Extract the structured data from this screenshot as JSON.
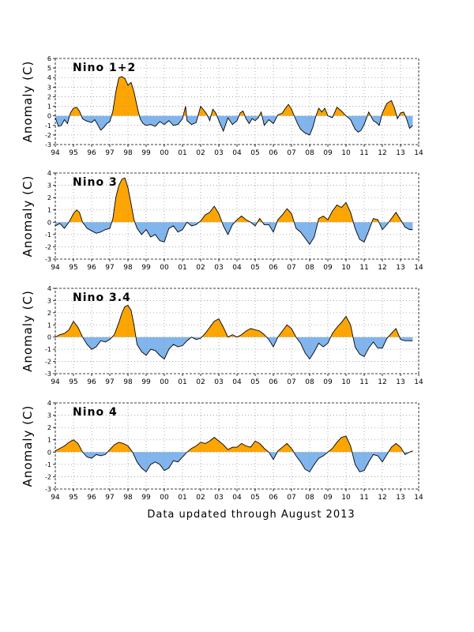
{
  "figure": {
    "footer": "Data updated through August 2013",
    "colors": {
      "positive": "#ffa500",
      "negative": "#80b5ee",
      "line": "#000000",
      "grid": "#999999"
    }
  },
  "chart_data": [
    {
      "type": "area",
      "title": "Nino 1+2",
      "ylabel": "Anomaly (C)",
      "xlabel": "",
      "xlim": [
        1994,
        2014
      ],
      "ylim": [
        -3,
        6
      ],
      "yticks": [
        -3,
        -2,
        -1,
        0,
        1,
        2,
        3,
        4,
        5,
        6
      ],
      "xtick_labels": [
        "94",
        "95",
        "96",
        "97",
        "98",
        "99",
        "00",
        "01",
        "02",
        "03",
        "04",
        "05",
        "06",
        "07",
        "08",
        "09",
        "10",
        "11",
        "12",
        "13",
        "14"
      ],
      "grid": true,
      "fill": "positive orange, negative blue, about zero",
      "series": [
        {
          "x": [
            1994.0,
            1994.17,
            1994.33,
            1994.5,
            1994.67,
            1994.83,
            1995.0,
            1995.17,
            1995.33,
            1995.5,
            1995.67,
            1995.83,
            1996.0,
            1996.17,
            1996.33,
            1996.5,
            1996.67,
            1996.83,
            1997.0,
            1997.17,
            1997.33,
            1997.5,
            1997.67,
            1997.83,
            1998.0,
            1998.17,
            1998.33,
            1998.5,
            1998.67,
            1998.83,
            1999.0,
            1999.25,
            1999.5,
            1999.75,
            2000.0,
            2000.25,
            2000.5,
            2000.75,
            2001.0,
            2001.17,
            2001.25,
            2001.5,
            2001.75,
            2002.0,
            2002.17,
            2002.33,
            2002.5,
            2002.67,
            2002.83,
            2003.0,
            2003.25,
            2003.5,
            2003.75,
            2004.0,
            2004.17,
            2004.33,
            2004.5,
            2004.67,
            2004.83,
            2005.0,
            2005.17,
            2005.33,
            2005.5,
            2005.75,
            2006.0,
            2006.25,
            2006.5,
            2006.67,
            2006.83,
            2007.0,
            2007.17,
            2007.33,
            2007.5,
            2007.75,
            2008.0,
            2008.17,
            2008.33,
            2008.5,
            2008.67,
            2008.83,
            2009.0,
            2009.25,
            2009.5,
            2009.75,
            2010.0,
            2010.25,
            2010.5,
            2010.67,
            2010.83,
            2011.0,
            2011.25,
            2011.5,
            2011.67,
            2011.83,
            2012.0,
            2012.25,
            2012.5,
            2012.67,
            2012.83,
            2013.0,
            2013.17,
            2013.33,
            2013.5,
            2013.67
          ],
          "y": [
            -0.2,
            -1.1,
            -1.0,
            -0.4,
            -0.8,
            0.3,
            0.8,
            0.9,
            0.5,
            -0.3,
            -0.5,
            -0.6,
            -0.7,
            -0.4,
            -0.9,
            -1.5,
            -1.2,
            -0.8,
            -0.6,
            0.5,
            2.5,
            4.0,
            4.1,
            3.9,
            3.2,
            3.5,
            2.5,
            1.0,
            -0.3,
            -0.8,
            -1.0,
            -0.9,
            -1.1,
            -0.6,
            -0.9,
            -0.5,
            -1.0,
            -0.9,
            -0.3,
            1.0,
            -0.5,
            -0.9,
            -0.7,
            1.0,
            0.6,
            0.2,
            -0.5,
            0.7,
            0.3,
            -0.5,
            -1.6,
            -0.2,
            -0.9,
            -0.5,
            0.3,
            0.5,
            -0.3,
            -0.8,
            -0.3,
            -0.5,
            -0.2,
            0.4,
            -1.0,
            -0.4,
            -0.8,
            0.1,
            0.3,
            0.8,
            1.2,
            0.7,
            -0.1,
            -0.8,
            -1.4,
            -1.8,
            -2.0,
            -1.2,
            -0.1,
            0.8,
            0.4,
            0.8,
            0.0,
            -0.2,
            0.9,
            0.5,
            0.0,
            -0.4,
            -1.4,
            -1.7,
            -1.5,
            -0.9,
            0.4,
            -0.5,
            -0.7,
            -1.0,
            0.3,
            1.3,
            1.6,
            0.8,
            -0.3,
            0.3,
            0.4,
            -0.3,
            -1.3,
            -1.0
          ]
        }
      ]
    },
    {
      "type": "area",
      "title": "Nino 3",
      "ylabel": "Anomaly (C)",
      "xlabel": "",
      "xlim": [
        1994,
        2014
      ],
      "ylim": [
        -3,
        4
      ],
      "yticks": [
        -3,
        -2,
        -1,
        0,
        1,
        2,
        3,
        4
      ],
      "xtick_labels": [
        "94",
        "95",
        "96",
        "97",
        "98",
        "99",
        "00",
        "01",
        "02",
        "03",
        "04",
        "05",
        "06",
        "07",
        "08",
        "09",
        "10",
        "11",
        "12",
        "13",
        "14"
      ],
      "grid": true,
      "fill": "positive orange, negative blue, about zero",
      "series": [
        {
          "x": [
            1994.0,
            1994.25,
            1994.5,
            1994.75,
            1995.0,
            1995.17,
            1995.33,
            1995.5,
            1995.75,
            1996.0,
            1996.25,
            1996.5,
            1996.75,
            1997.0,
            1997.17,
            1997.33,
            1997.5,
            1997.67,
            1997.83,
            1998.0,
            1998.17,
            1998.33,
            1998.5,
            1998.75,
            1999.0,
            1999.25,
            1999.5,
            1999.75,
            2000.0,
            2000.25,
            2000.5,
            2000.75,
            2001.0,
            2001.25,
            2001.5,
            2001.75,
            2002.0,
            2002.25,
            2002.5,
            2002.75,
            2003.0,
            2003.25,
            2003.5,
            2003.75,
            2004.0,
            2004.25,
            2004.5,
            2004.75,
            2005.0,
            2005.25,
            2005.5,
            2005.75,
            2006.0,
            2006.25,
            2006.5,
            2006.75,
            2007.0,
            2007.25,
            2007.5,
            2007.75,
            2008.0,
            2008.25,
            2008.5,
            2008.75,
            2009.0,
            2009.25,
            2009.5,
            2009.75,
            2010.0,
            2010.25,
            2010.5,
            2010.75,
            2011.0,
            2011.25,
            2011.5,
            2011.75,
            2012.0,
            2012.25,
            2012.5,
            2012.75,
            2013.0,
            2013.25,
            2013.5,
            2013.67
          ],
          "y": [
            -0.3,
            -0.1,
            -0.5,
            0.0,
            0.7,
            1.0,
            0.8,
            0.0,
            -0.5,
            -0.7,
            -0.9,
            -0.8,
            -0.6,
            -0.5,
            0.3,
            2.0,
            3.0,
            3.5,
            3.6,
            2.8,
            1.5,
            0.2,
            -0.5,
            -1.0,
            -0.6,
            -1.2,
            -1.0,
            -1.5,
            -1.6,
            -0.5,
            -0.3,
            -0.8,
            -0.6,
            0.0,
            -0.3,
            -0.2,
            0.1,
            0.6,
            0.8,
            1.3,
            0.7,
            -0.3,
            -1.0,
            -0.2,
            0.2,
            0.5,
            0.2,
            0.0,
            -0.3,
            0.3,
            -0.2,
            -0.2,
            -0.8,
            0.2,
            0.6,
            1.1,
            0.7,
            -0.5,
            -0.8,
            -1.3,
            -1.8,
            -1.2,
            0.3,
            0.5,
            0.2,
            0.9,
            1.4,
            1.2,
            1.6,
            0.8,
            -0.5,
            -1.4,
            -1.6,
            -0.7,
            0.3,
            0.2,
            -0.6,
            -0.2,
            0.3,
            0.8,
            0.2,
            -0.4,
            -0.6,
            -0.6
          ]
        }
      ]
    },
    {
      "type": "area",
      "title": "Nino 3.4",
      "ylabel": "Anomaly (C)",
      "xlabel": "",
      "xlim": [
        1994,
        2014
      ],
      "ylim": [
        -3,
        4
      ],
      "yticks": [
        -3,
        -2,
        -1,
        0,
        1,
        2,
        3,
        4
      ],
      "xtick_labels": [
        "94",
        "95",
        "96",
        "97",
        "98",
        "99",
        "00",
        "01",
        "02",
        "03",
        "04",
        "05",
        "06",
        "07",
        "08",
        "09",
        "10",
        "11",
        "12",
        "13",
        "14"
      ],
      "grid": true,
      "fill": "positive orange, negative blue, about zero",
      "series": [
        {
          "x": [
            1994.0,
            1994.25,
            1994.5,
            1994.75,
            1995.0,
            1995.25,
            1995.5,
            1995.75,
            1996.0,
            1996.25,
            1996.5,
            1996.75,
            1997.0,
            1997.25,
            1997.5,
            1997.67,
            1997.83,
            1998.0,
            1998.17,
            1998.33,
            1998.5,
            1998.75,
            1999.0,
            1999.25,
            1999.5,
            1999.75,
            2000.0,
            2000.25,
            2000.5,
            2000.75,
            2001.0,
            2001.25,
            2001.5,
            2001.75,
            2002.0,
            2002.25,
            2002.5,
            2002.75,
            2003.0,
            2003.25,
            2003.5,
            2003.75,
            2004.0,
            2004.25,
            2004.5,
            2004.75,
            2005.0,
            2005.25,
            2005.5,
            2005.75,
            2006.0,
            2006.25,
            2006.5,
            2006.75,
            2007.0,
            2007.25,
            2007.5,
            2007.75,
            2008.0,
            2008.25,
            2008.5,
            2008.75,
            2009.0,
            2009.25,
            2009.5,
            2009.75,
            2010.0,
            2010.25,
            2010.5,
            2010.75,
            2011.0,
            2011.25,
            2011.5,
            2011.75,
            2012.0,
            2012.25,
            2012.5,
            2012.75,
            2013.0,
            2013.25,
            2013.5,
            2013.67
          ],
          "y": [
            0.0,
            0.2,
            0.3,
            0.6,
            1.3,
            0.8,
            0.0,
            -0.6,
            -1.0,
            -0.8,
            -0.3,
            -0.4,
            -0.2,
            0.2,
            1.2,
            2.0,
            2.5,
            2.6,
            2.2,
            1.0,
            -0.6,
            -1.2,
            -1.5,
            -1.0,
            -1.1,
            -1.5,
            -1.8,
            -1.0,
            -0.6,
            -0.8,
            -0.7,
            -0.3,
            0.0,
            -0.2,
            -0.1,
            0.3,
            0.8,
            1.3,
            1.5,
            0.8,
            0.0,
            0.2,
            0.0,
            0.2,
            0.5,
            0.7,
            0.6,
            0.5,
            0.2,
            -0.2,
            -0.8,
            0.0,
            0.5,
            1.0,
            0.7,
            0.0,
            -0.5,
            -1.3,
            -1.8,
            -1.2,
            -0.5,
            -0.8,
            -0.5,
            0.3,
            0.8,
            1.2,
            1.7,
            1.0,
            -0.8,
            -1.4,
            -1.6,
            -0.9,
            -0.4,
            -0.9,
            -0.9,
            -0.1,
            0.3,
            0.7,
            -0.2,
            -0.3,
            -0.3,
            -0.3
          ]
        }
      ]
    },
    {
      "type": "area",
      "title": "Nino 4",
      "ylabel": "Anomaly (C)",
      "xlabel": "",
      "xlim": [
        1994,
        2014
      ],
      "ylim": [
        -3,
        4
      ],
      "yticks": [
        -3,
        -2,
        -1,
        0,
        1,
        2,
        3,
        4
      ],
      "xtick_labels": [
        "94",
        "95",
        "96",
        "97",
        "98",
        "99",
        "00",
        "01",
        "02",
        "03",
        "04",
        "05",
        "06",
        "07",
        "08",
        "09",
        "10",
        "11",
        "12",
        "13",
        "14"
      ],
      "grid": true,
      "fill": "positive orange, negative blue, about zero",
      "series": [
        {
          "x": [
            1994.0,
            1994.25,
            1994.5,
            1994.75,
            1995.0,
            1995.25,
            1995.5,
            1995.75,
            1996.0,
            1996.25,
            1996.5,
            1996.75,
            1997.0,
            1997.25,
            1997.5,
            1997.75,
            1998.0,
            1998.25,
            1998.5,
            1998.75,
            1999.0,
            1999.25,
            1999.5,
            1999.75,
            2000.0,
            2000.25,
            2000.5,
            2000.75,
            2001.0,
            2001.25,
            2001.5,
            2001.75,
            2002.0,
            2002.25,
            2002.5,
            2002.75,
            2003.0,
            2003.25,
            2003.5,
            2003.75,
            2004.0,
            2004.25,
            2004.5,
            2004.75,
            2005.0,
            2005.25,
            2005.5,
            2005.75,
            2006.0,
            2006.25,
            2006.5,
            2006.75,
            2007.0,
            2007.25,
            2007.5,
            2007.75,
            2008.0,
            2008.25,
            2008.5,
            2008.75,
            2009.0,
            2009.25,
            2009.5,
            2009.75,
            2010.0,
            2010.25,
            2010.5,
            2010.75,
            2011.0,
            2011.25,
            2011.5,
            2011.75,
            2012.0,
            2012.25,
            2012.5,
            2012.75,
            2013.0,
            2013.25,
            2013.5,
            2013.67
          ],
          "y": [
            0.1,
            0.3,
            0.5,
            0.8,
            1.0,
            0.7,
            0.0,
            -0.4,
            -0.5,
            -0.2,
            -0.3,
            -0.2,
            0.2,
            0.6,
            0.8,
            0.7,
            0.5,
            0.0,
            -0.8,
            -1.3,
            -1.6,
            -1.0,
            -0.8,
            -1.0,
            -1.5,
            -1.3,
            -0.7,
            -0.8,
            -0.4,
            0.0,
            0.3,
            0.5,
            0.8,
            0.7,
            0.9,
            1.2,
            0.9,
            0.6,
            0.2,
            0.4,
            0.4,
            0.7,
            0.5,
            0.4,
            0.9,
            0.7,
            0.3,
            0.0,
            -0.6,
            0.1,
            0.4,
            0.7,
            0.3,
            -0.3,
            -0.8,
            -1.4,
            -1.6,
            -1.0,
            -0.5,
            -0.3,
            0.0,
            0.3,
            0.8,
            1.2,
            1.3,
            0.5,
            -1.0,
            -1.6,
            -1.5,
            -0.8,
            -0.2,
            -0.3,
            -0.8,
            -0.2,
            0.4,
            0.7,
            0.4,
            -0.2,
            0.0,
            0.1
          ]
        }
      ]
    }
  ]
}
